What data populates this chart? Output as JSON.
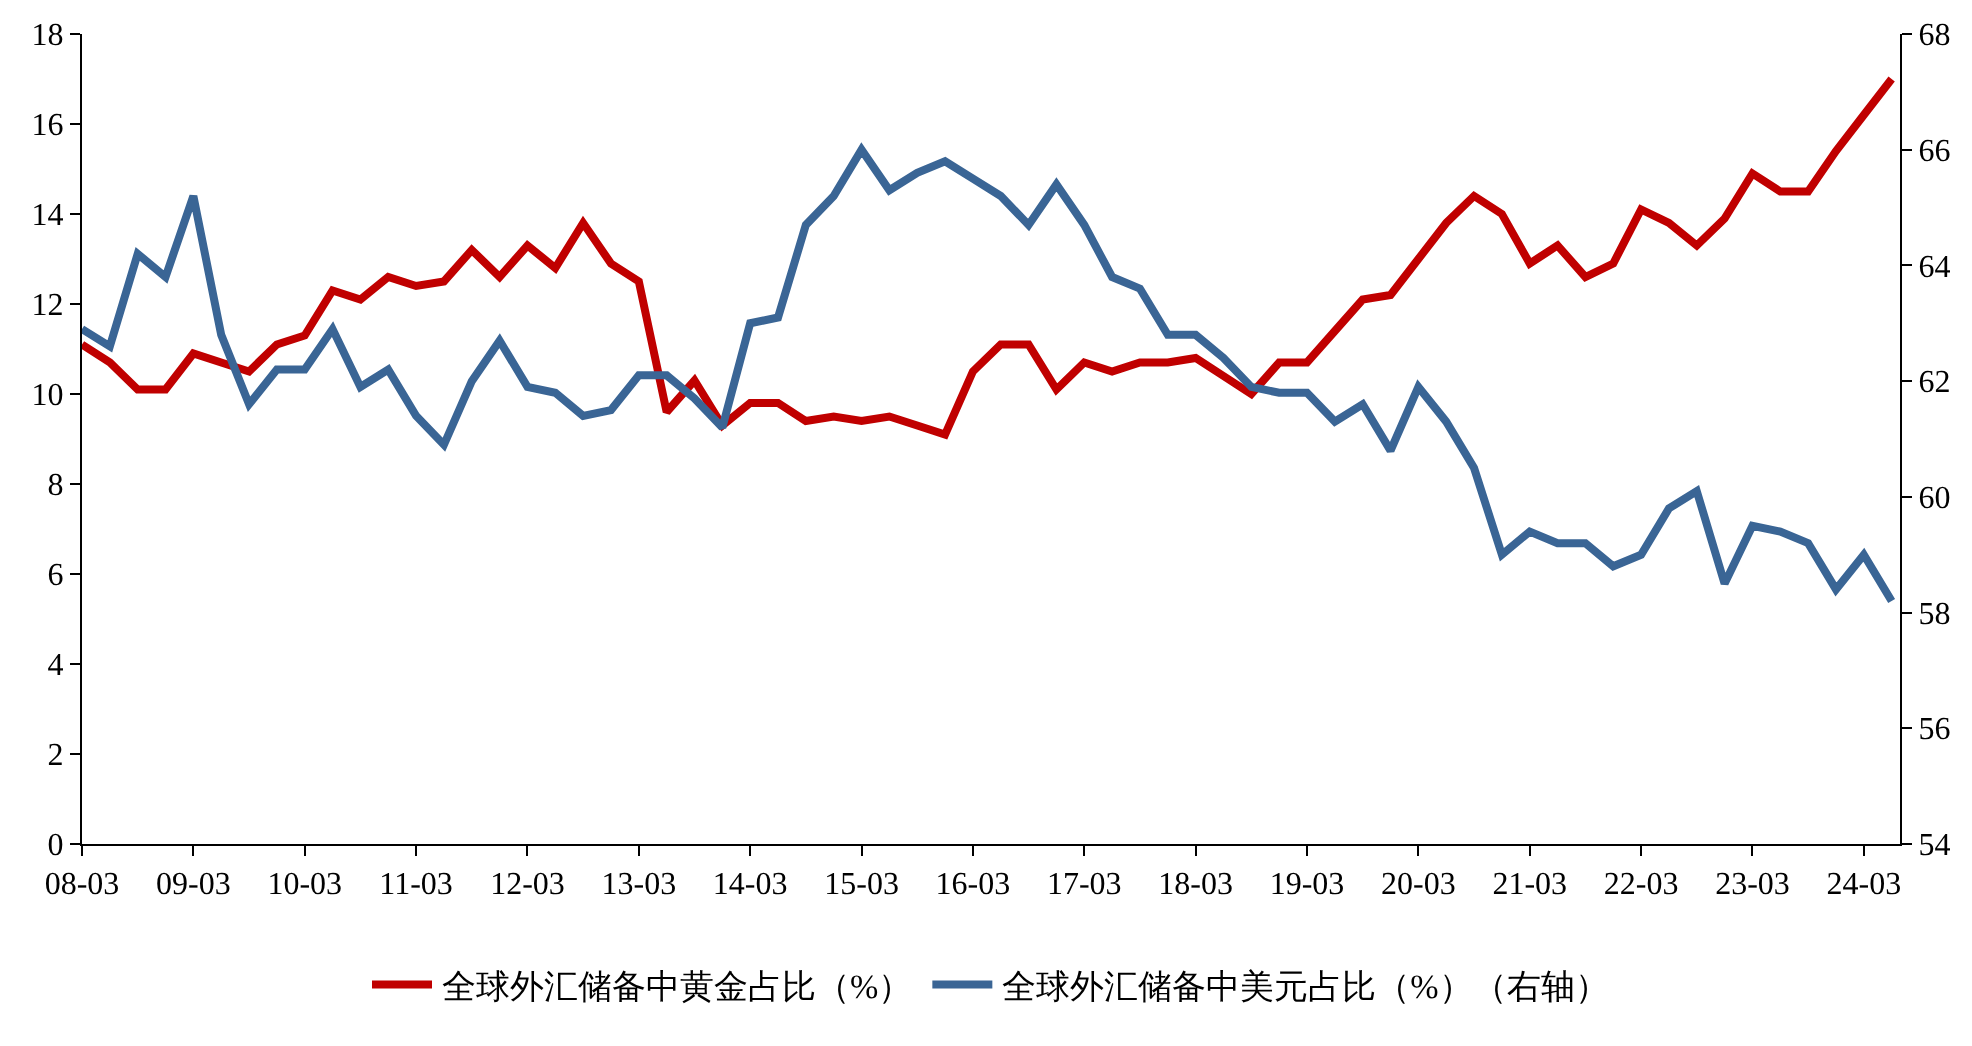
{
  "chart_data": {
    "type": "line",
    "categories": [
      "08-03",
      null,
      null,
      null,
      "09-03",
      null,
      null,
      null,
      "10-03",
      null,
      null,
      null,
      "11-03",
      null,
      null,
      null,
      "12-03",
      null,
      null,
      null,
      "13-03",
      null,
      null,
      null,
      "14-03",
      null,
      null,
      null,
      "15-03",
      null,
      null,
      null,
      "16-03",
      null,
      null,
      null,
      "17-03",
      null,
      null,
      null,
      "18-03",
      null,
      null,
      null,
      "19-03",
      null,
      null,
      null,
      "20-03",
      null,
      null,
      null,
      "21-03",
      null,
      null,
      null,
      "22-03",
      null,
      null,
      null,
      "23-03",
      null,
      null,
      null,
      "24-03",
      null
    ],
    "series": [
      {
        "name": "全球外汇储备中黄金占比（%）",
        "color": "#c00000",
        "values": [
          11.1,
          10.7,
          10.1,
          10.1,
          10.9,
          10.7,
          10.5,
          11.1,
          11.3,
          12.3,
          12.1,
          12.6,
          12.4,
          12.5,
          13.2,
          12.6,
          13.3,
          12.8,
          13.8,
          12.9,
          12.5,
          9.6,
          10.3,
          9.3,
          9.8,
          9.8,
          9.4,
          9.5,
          9.4,
          9.5,
          9.3,
          9.1,
          10.5,
          11.1,
          11.1,
          10.1,
          10.7,
          10.5,
          10.7,
          10.7,
          10.8,
          10.4,
          10.0,
          10.7,
          10.7,
          11.4,
          12.1,
          12.2,
          13.0,
          13.8,
          14.4,
          14.0,
          12.9,
          13.3,
          12.6,
          12.9,
          14.1,
          13.8,
          13.3,
          13.9,
          14.9,
          14.5,
          14.5,
          15.4,
          16.2,
          17.0
        ]
      },
      {
        "name": "全球外汇储备中美元占比（%）（右轴）",
        "color": "#3a6595",
        "axis": "y2",
        "values": [
          62.9,
          62.6,
          64.2,
          63.8,
          65.2,
          62.8,
          61.6,
          62.2,
          62.2,
          62.9,
          61.9,
          62.2,
          61.4,
          60.9,
          62.0,
          62.7,
          61.9,
          61.8,
          61.4,
          61.5,
          62.1,
          62.1,
          61.7,
          61.2,
          63.0,
          63.1,
          64.7,
          65.2,
          66.0,
          65.3,
          65.6,
          65.8,
          65.5,
          65.2,
          64.7,
          65.4,
          64.7,
          63.8,
          63.6,
          62.8,
          62.8,
          62.4,
          61.9,
          61.8,
          61.8,
          61.3,
          61.6,
          60.8,
          61.9,
          61.3,
          60.5,
          59.0,
          59.4,
          59.2,
          59.2,
          58.8,
          59.0,
          59.8,
          60.1,
          58.5,
          59.5,
          59.4,
          59.2,
          58.4,
          59.0,
          58.2
        ]
      }
    ],
    "ylim": [
      0,
      18
    ],
    "yticks": [
      0,
      2,
      4,
      6,
      8,
      10,
      12,
      14,
      16,
      18
    ],
    "y2lim": [
      54,
      68
    ],
    "y2ticks": [
      54,
      56,
      58,
      60,
      62,
      64,
      66,
      68
    ],
    "legend": "bottom",
    "grid": false,
    "marker": "none",
    "line_style": "solid"
  }
}
